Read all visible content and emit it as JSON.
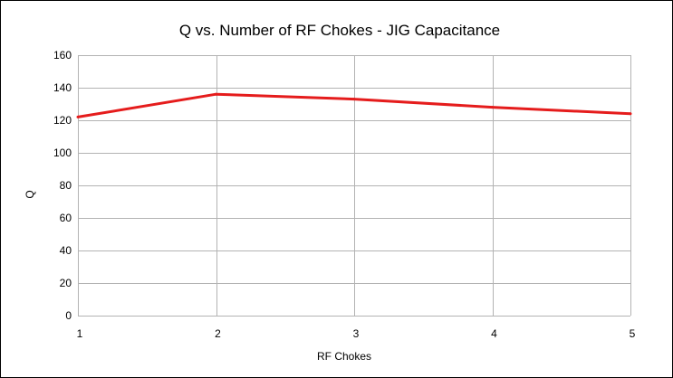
{
  "chart_data": {
    "type": "line",
    "title": "Q vs. Number of RF Chokes - JIG Capacitance",
    "xlabel": "RF Chokes",
    "ylabel": "Q",
    "x": [
      1,
      2,
      3,
      4,
      5
    ],
    "x_tick_labels": [
      "1",
      "2",
      "3",
      "4",
      "5"
    ],
    "y_tick_labels": [
      "0",
      "20",
      "40",
      "60",
      "80",
      "100",
      "120",
      "140",
      "160"
    ],
    "xlim": [
      1,
      5
    ],
    "ylim": [
      0,
      160
    ],
    "y_ticks": [
      0,
      20,
      40,
      60,
      80,
      100,
      120,
      140,
      160
    ],
    "grid": true,
    "legend": "none",
    "series": [
      {
        "values": [
          122,
          136,
          133,
          128,
          124
        ],
        "color": "#e51c1c"
      }
    ]
  }
}
